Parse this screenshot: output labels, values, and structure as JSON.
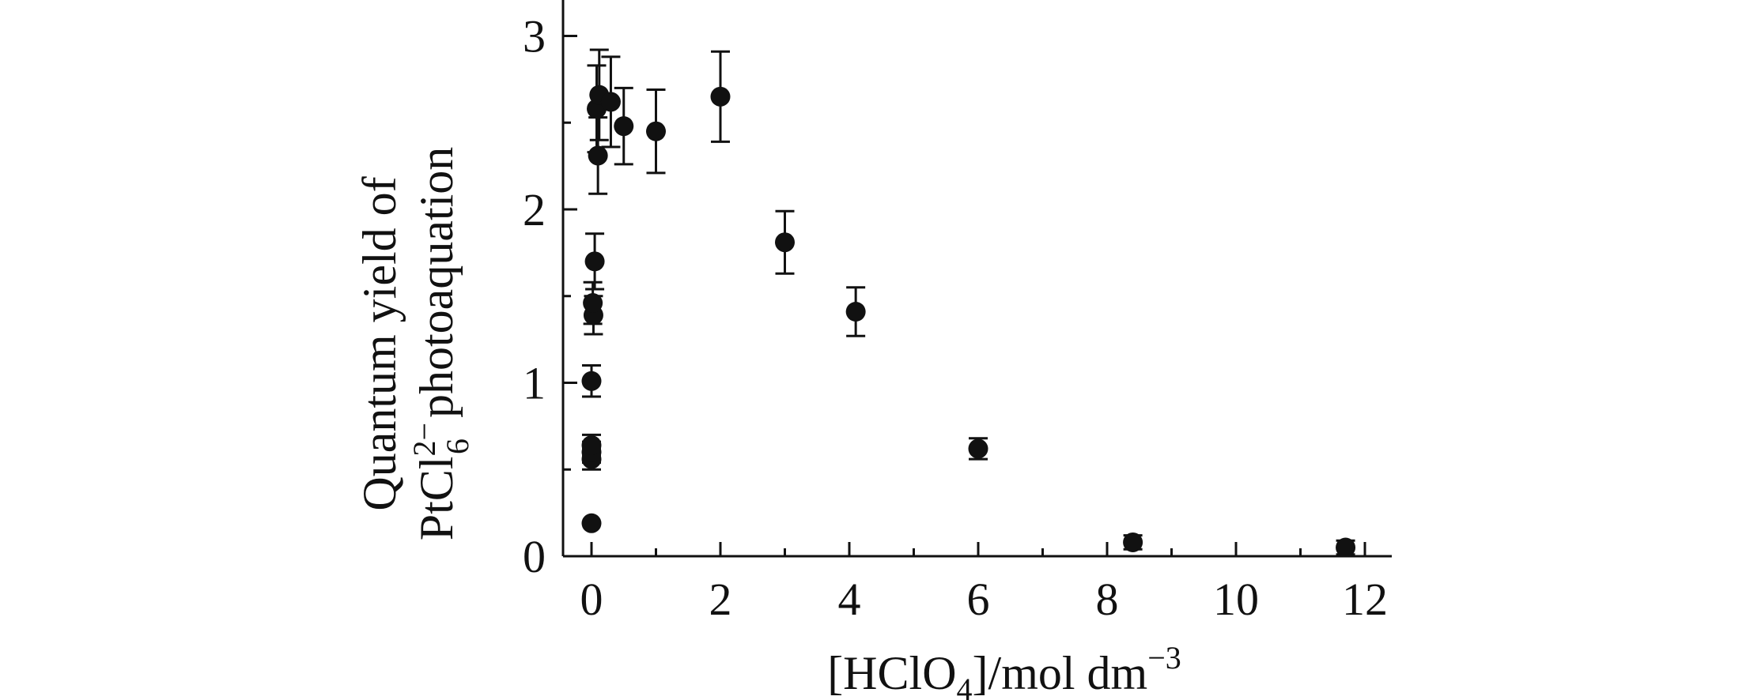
{
  "chart_data": {
    "type": "scatter",
    "title": "",
    "xlabel": {
      "prefix": "[HClO",
      "sub": "4",
      "middle": "]/mol dm",
      "sup": "−3"
    },
    "ylabel": {
      "line1": "Quantum yield of",
      "line2_prefix": "PtCl",
      "line2_sup": "2−",
      "line2_sub": "6",
      "line2_suffix": "photoaquation"
    },
    "xlim": [
      -0.45,
      12.5
    ],
    "ylim": [
      0,
      3.2
    ],
    "x_ticks": [
      0,
      2,
      4,
      6,
      8,
      10,
      12
    ],
    "x_tick_labels": [
      "0",
      "2",
      "4",
      "6",
      "8",
      "10",
      "12"
    ],
    "x_minor_ticks": [
      1,
      3,
      5,
      7,
      9,
      11
    ],
    "y_ticks": [
      0,
      1,
      2,
      3
    ],
    "y_tick_labels": [
      "0",
      "1",
      "2",
      "3"
    ],
    "y_minor_ticks": [
      0.5,
      1.5,
      2.5
    ],
    "grid": false,
    "legend": "none",
    "marker_color": "#111111",
    "points": [
      {
        "x": 0.0,
        "y": 0.19,
        "err": 0.0
      },
      {
        "x": 0.0,
        "y": 0.56,
        "err": 0.06
      },
      {
        "x": 0.0,
        "y": 0.6,
        "err": 0.06
      },
      {
        "x": 0.0,
        "y": 0.64,
        "err": 0.06
      },
      {
        "x": 0.0,
        "y": 1.01,
        "err": 0.09
      },
      {
        "x": 0.03,
        "y": 1.39,
        "err": 0.11
      },
      {
        "x": 0.02,
        "y": 1.46,
        "err": 0.12
      },
      {
        "x": 0.05,
        "y": 1.7,
        "err": 0.16
      },
      {
        "x": 0.1,
        "y": 2.31,
        "err": 0.22
      },
      {
        "x": 0.08,
        "y": 2.58,
        "err": 0.25
      },
      {
        "x": 0.12,
        "y": 2.66,
        "err": 0.26
      },
      {
        "x": 0.3,
        "y": 2.62,
        "err": 0.26
      },
      {
        "x": 0.5,
        "y": 2.48,
        "err": 0.22
      },
      {
        "x": 1.0,
        "y": 2.45,
        "err": 0.24
      },
      {
        "x": 2.0,
        "y": 2.65,
        "err": 0.26
      },
      {
        "x": 3.0,
        "y": 1.81,
        "err": 0.18
      },
      {
        "x": 4.1,
        "y": 1.41,
        "err": 0.14
      },
      {
        "x": 6.0,
        "y": 0.62,
        "err": 0.06
      },
      {
        "x": 8.4,
        "y": 0.08,
        "err": 0.04
      },
      {
        "x": 11.7,
        "y": 0.05,
        "err": 0.04
      }
    ]
  }
}
